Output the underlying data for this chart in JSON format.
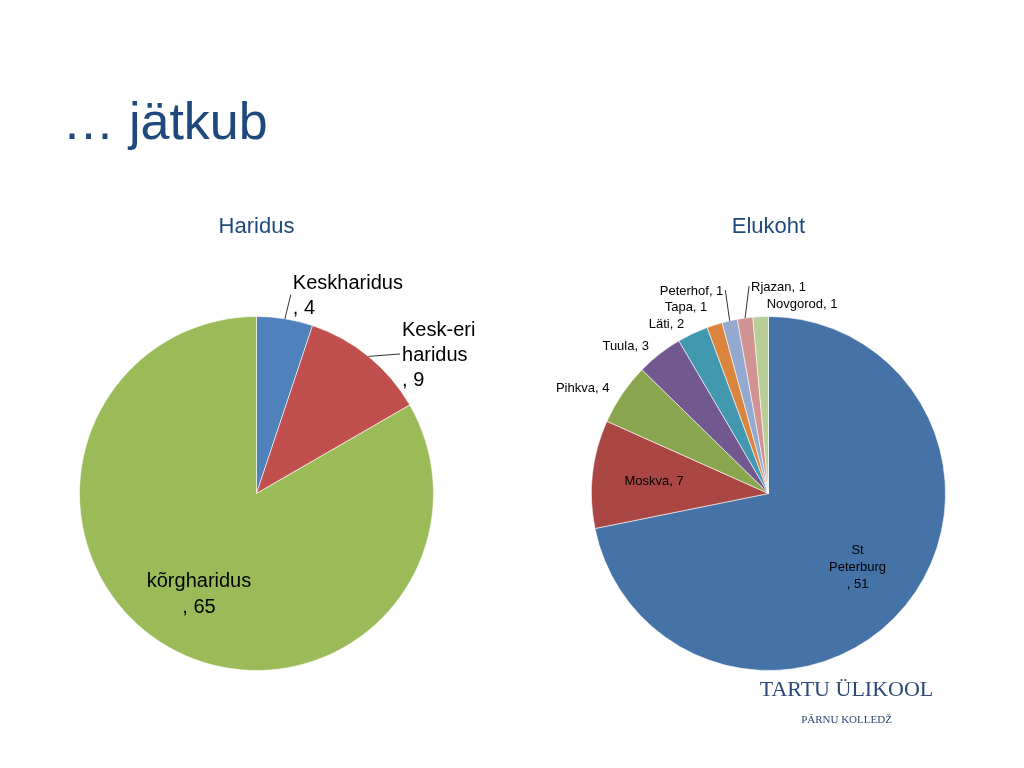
{
  "chart_data": [
    {
      "type": "other",
      "title": "… jätkub"
    },
    {
      "type": "pie",
      "title": "Haridus",
      "categories": [
        "Keskharidus ",
        "Kesk-eri haridus ",
        "kõrgharidus "
      ],
      "values": [
        4,
        9,
        65
      ],
      "value_labels": [
        ", 4",
        ", 9",
        ", 65"
      ],
      "colors": [
        "#4f81bd",
        "#c0504d",
        "#9bbb59"
      ]
    },
    {
      "type": "pie",
      "title": "Elukoht",
      "categories": [
        "St Peterburg ",
        "Moskva",
        "Pihkva",
        "Tuula",
        "Läti",
        "Tapa",
        "Peterhof",
        "Rjazan",
        "Novgorod"
      ],
      "values": [
        51,
        7,
        4,
        3,
        2,
        1,
        1,
        1,
        1
      ],
      "value_labels": [
        ", 51",
        ", 7",
        ", 4",
        ", 3",
        ", 2",
        ", 1",
        ", 1",
        ", 1",
        ", 1"
      ],
      "colors": [
        "#4572a7",
        "#aa4643",
        "#89a54e",
        "#71588f",
        "#4198af",
        "#db843d",
        "#93a9cf",
        "#d19392",
        "#b9cd96"
      ],
      "annotations": [
        "TARTU ÜLIKOOL",
        "PÄRNU KOLLEDŽ"
      ]
    }
  ]
}
